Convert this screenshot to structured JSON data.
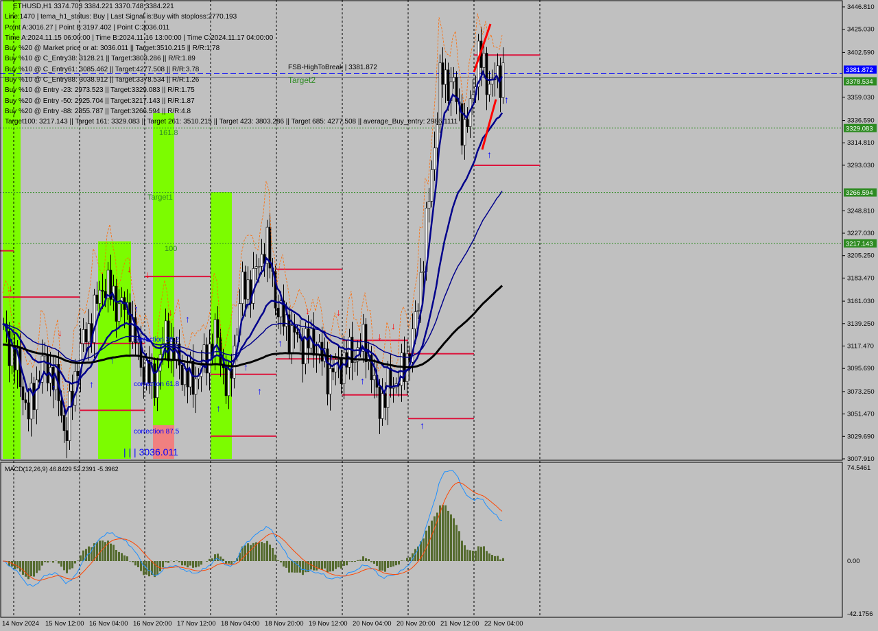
{
  "symbol_line": "ETHUSD,H1  3374.703 3384.221 3370.748 3384.221",
  "info_lines": [
    "Line:1470 | tema_h1_status: Buy | Last Signal is:Buy with stoploss:2770.193",
    "Point A:3016.27 | Point B:3197.402 | Point C:3036.011",
    "Time A:2024.11.15 06:00:00 | Time B:2024.11.16 13:00:00 | Time C:2024.11.17 04:00:00",
    "Buy %20 @ Market price or at: 3036.011 || Target:3510.215 || R/R:1.78",
    "Buy %10 @ C_Entry38: 3128.21 || Target:3803.286 || R/R:1.89",
    "Buy %10 @ C_Entry61: 3085.462 || Target:4277.508 || R/R:3.78",
    "Buy %10 @ C_Entry88: 3038.912 || Target:3378.534 || R/R:1.26",
    "Buy %10 @ Entry -23: 2973.523 || Target:3329.083 || R/R:1.75",
    "Buy %20 @ Entry -50: 2925.704 || Target:3217.143 || R/R:1.87",
    "Buy %20 @ Entry -88: 2855.787 || Target:3266.594 || R/R:4.8",
    "Target100: 3217.143 || Target 161: 3329.083 || Target 261: 3510.215 || Target 423: 3803.286 || Target 685: 4277.508 || average_Buy_entry: 2986.1111"
  ],
  "chart_labels": {
    "fsb": "FSB-HighToBreak | 3381.872",
    "target2": "Target2",
    "l161": "161.8",
    "target1": "Target1",
    "l100": "100",
    "corr38": "correction 38.2",
    "corr61": "correction 61.8",
    "corr87": "correction 87.5",
    "pointc": "| | | 3036.011",
    "macd": "MACD(12,26,9) 46.8429 52.2391 -5.3962"
  },
  "price_axis": [
    "3446.810",
    "3425.030",
    "3402.590",
    "3359.030",
    "3336.590",
    "3314.810",
    "3293.030",
    "3248.810",
    "3227.030",
    "3205.250",
    "3183.470",
    "3161.030",
    "3139.250",
    "3117.470",
    "3095.690",
    "3073.250",
    "3051.470",
    "3029.690",
    "3007.910"
  ],
  "price_tags": [
    {
      "v": "3381.872",
      "c": "#0000ff"
    },
    {
      "v": "3378.534",
      "c": "#2e8b22"
    },
    {
      "v": "3329.083",
      "c": "#2e8b22"
    },
    {
      "v": "3266.594",
      "c": "#2e8b22"
    },
    {
      "v": "3217.143",
      "c": "#2e8b22"
    }
  ],
  "macd_axis": [
    "74.5461",
    "0.00",
    "-42.1756"
  ],
  "time_axis": [
    "14 Nov 2024",
    "15 Nov 12:00",
    "16 Nov 04:00",
    "16 Nov 20:00",
    "17 Nov 12:00",
    "18 Nov 04:00",
    "18 Nov 20:00",
    "19 Nov 12:00",
    "20 Nov 04:00",
    "20 Nov 20:00",
    "21 Nov 12:00",
    "22 Nov 04:00"
  ],
  "colors": {
    "bg": "#c0c0c0",
    "zone": "#7cfc00",
    "ma": "#00008b",
    "resistance": "#dc143c",
    "target_line": "#2e8b22",
    "macd_hist": "#556b2f",
    "macd_line": "#1e90ff",
    "signal_line": "#ff4500"
  },
  "chart_data": {
    "type": "candlestick",
    "ylim": [
      3007.91,
      3446.81
    ],
    "approx_close": [
      3130,
      3100,
      3050,
      3100,
      3090,
      3030,
      3110,
      3140,
      3180,
      3160,
      3150,
      3100,
      3080,
      3130,
      3100,
      3080,
      3100,
      3130,
      3070,
      3170,
      3180,
      3220,
      3150,
      3130,
      3120,
      3120,
      3090,
      3100,
      3110,
      3120,
      3060,
      3080,
      3090,
      3140,
      3250,
      3380,
      3370,
      3320,
      3400,
      3370,
      3384
    ],
    "macd_ylim": [
      -42.1756,
      74.5461
    ]
  }
}
